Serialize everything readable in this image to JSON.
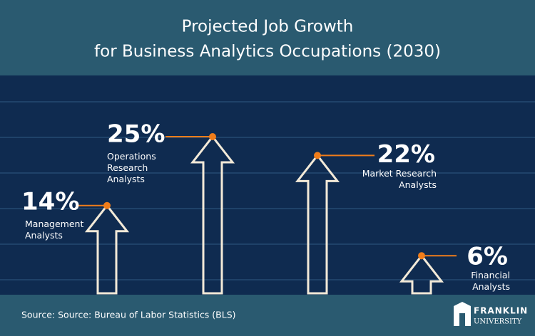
{
  "chart_data": {
    "type": "arrow",
    "title": [
      "Projected Job Growth",
      "for Business Analytics Occupations (2030)"
    ],
    "categories": [
      "Management Analysts",
      "Operations Research Analysts",
      "Market Research Analysts",
      "Financial Analysts"
    ],
    "values": [
      14,
      25,
      22,
      6
    ],
    "value_labels": [
      "14%",
      "25%",
      "22%",
      "6%"
    ],
    "color": "#f3ead8",
    "accent_color": "#f07d1a",
    "source": "Source: Source: Bureau of Labor Statistics (BLS)",
    "logo": [
      "FRANKLIN",
      "UNIVERSITY"
    ]
  }
}
